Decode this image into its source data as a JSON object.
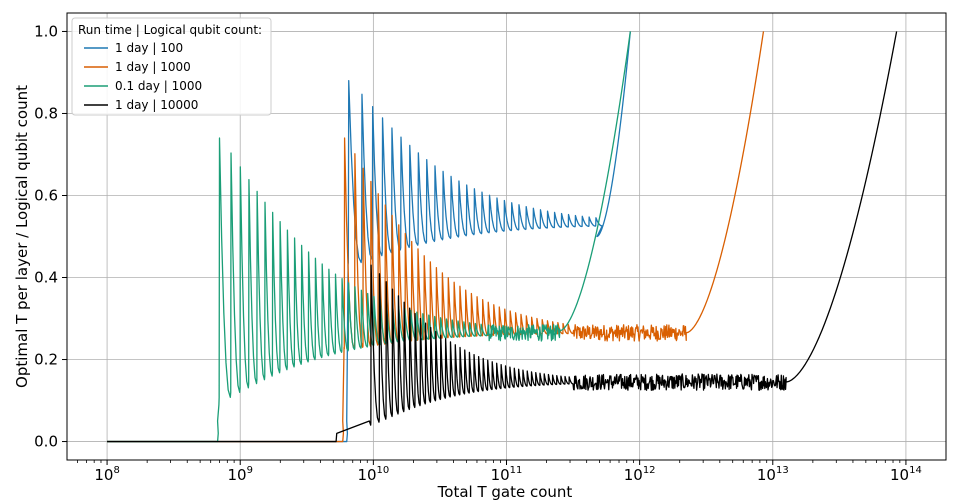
{
  "chart_data": {
    "type": "line",
    "title": "",
    "xlabel": "Total T gate count",
    "ylabel": "Optimal T per layer / Logical qubit count",
    "x_scale": "log",
    "xlim": [
      50000000,
      200000000000000
    ],
    "ylim": [
      -0.045,
      1.045
    ],
    "grid": true,
    "legend_title": "Run time | Logical qubit count:",
    "legend_position": "top-left",
    "x_ticks": [
      {
        "base": "10",
        "exp": "8"
      },
      {
        "base": "10",
        "exp": "9"
      },
      {
        "base": "10",
        "exp": "10"
      },
      {
        "base": "10",
        "exp": "11"
      },
      {
        "base": "10",
        "exp": "12"
      },
      {
        "base": "10",
        "exp": "13"
      },
      {
        "base": "10",
        "exp": "14"
      }
    ],
    "y_ticks": [
      "0.0",
      "0.2",
      "0.4",
      "0.6",
      "0.8",
      "1.0"
    ],
    "series": [
      {
        "name": "1 day | 100",
        "color": "#1f78b4",
        "logT_start": 9.8,
        "logT_jump": 9.81,
        "logT_end": 11.93,
        "plateau": 0.53,
        "peak_first": 0.88,
        "saw_base": 0.42,
        "saw_count": 32,
        "saw_end": 11.72,
        "noise_from": 11.3,
        "rise_from": 11.68,
        "rise_level": 0.5
      },
      {
        "name": "1 day | 1000",
        "color": "#d95f02",
        "logT_start": 9.77,
        "logT_jump": 9.78,
        "logT_end": 12.93,
        "plateau": 0.265,
        "peak_first": 0.74,
        "saw_base": 0.22,
        "saw_count": 38,
        "saw_end": 11.5,
        "noise_from": 11.45,
        "rise_from": 12.35,
        "rise_level": 0.265
      },
      {
        "name": "0.1 day | 1000",
        "color": "#1b9e77",
        "logT_start": 8.83,
        "logT_jump": 8.84,
        "logT_end": 11.93,
        "plateau": 0.265,
        "peak_first": 0.74,
        "saw_base": 0.08,
        "saw_count": 40,
        "saw_end": 10.85,
        "noise_from": 10.6,
        "rise_from": 11.4,
        "rise_level": 0.27
      },
      {
        "name": "1 day | 10000",
        "color": "#000000",
        "logT_start": 9.72,
        "logT_jump": 9.98,
        "logT_end": 13.93,
        "plateau": 0.145,
        "peak_first": 0.43,
        "saw_base": 0.03,
        "saw_count": 42,
        "saw_end": 11.5,
        "noise_from": 11.5,
        "rise_from": 13.1,
        "rise_level": 0.145
      }
    ]
  }
}
